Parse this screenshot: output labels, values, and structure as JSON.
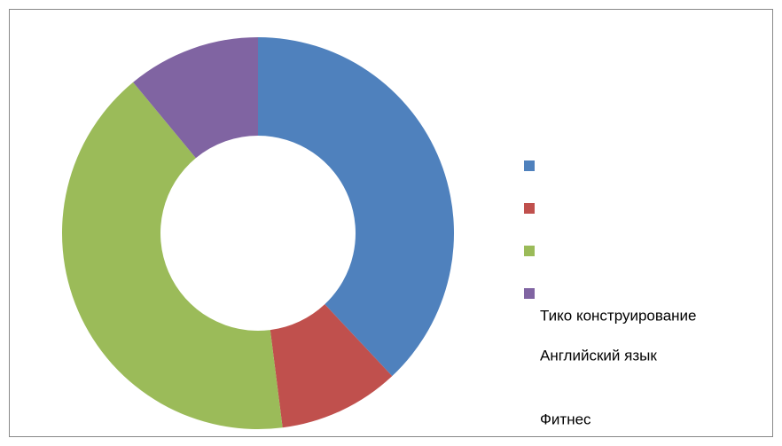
{
  "chart_data": {
    "type": "donut",
    "categories": [
      null,
      null,
      null,
      null
    ],
    "values": [
      38,
      10,
      41,
      11
    ],
    "colors": [
      "#4f81bd",
      "#c0504d",
      "#9bbb59",
      "#8064a2"
    ],
    "annotations": [
      "Тико конструирование",
      "Английский язык",
      "Фитнес"
    ]
  }
}
